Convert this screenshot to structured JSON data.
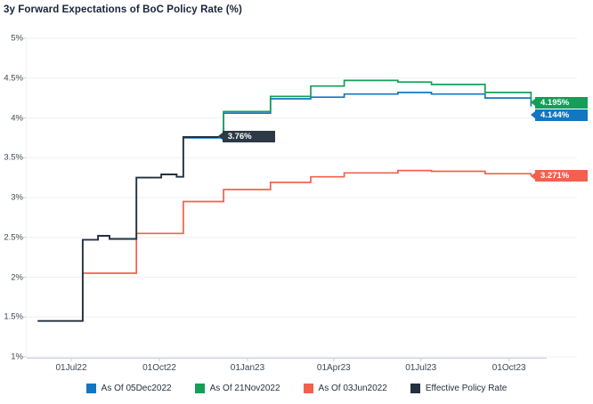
{
  "title": "3y Forward Expectations of BoC Policy Rate (%)",
  "colors": {
    "background": "#ffffff",
    "title_text": "#17243a",
    "tick_text": "#3b4754",
    "gridline": "#f0f0f4",
    "axis_line": "#c9d2de",
    "blue": "#1376c0",
    "green": "#149e58",
    "red": "#f4604e",
    "navy": "#233140",
    "inline_label_bg": "#2c3946"
  },
  "chart_data": {
    "type": "line",
    "subtype": "step-after",
    "title": "3y Forward Expectations of BoC Policy Rate (%)",
    "xlabel": "",
    "ylabel": "",
    "ylim": [
      1,
      5
    ],
    "y_unit": "%",
    "grid": "horizontal",
    "legend_position": "bottom",
    "y_axis": {
      "ticks": [
        {
          "label": "5%",
          "value": 5
        },
        {
          "label": "4.5%",
          "value": 4.5
        },
        {
          "label": "4%",
          "value": 4
        },
        {
          "label": "3.5%",
          "value": 3.5
        },
        {
          "label": "3%",
          "value": 3
        },
        {
          "label": "2.5%",
          "value": 2.5
        },
        {
          "label": "2%",
          "value": 2
        },
        {
          "label": "1.5%",
          "value": 1.5
        },
        {
          "label": "1%",
          "value": 1
        }
      ]
    },
    "x_axis": {
      "type": "date",
      "ticks": [
        {
          "label": "01Jul22",
          "date": "2022-07-01"
        },
        {
          "label": "01Oct22",
          "date": "2022-10-01"
        },
        {
          "label": "01Jan23",
          "date": "2023-01-01"
        },
        {
          "label": "01Apr23",
          "date": "2023-04-01"
        },
        {
          "label": "01Jul23",
          "date": "2023-07-01"
        },
        {
          "label": "01Oct23",
          "date": "2023-10-01"
        }
      ]
    },
    "series": [
      {
        "name": "As Of 05Dec2022",
        "color": "#1376c0",
        "end_label": "4.144%",
        "label_inline": false,
        "points": [
          [
            "2022-10-26",
            3.75
          ],
          [
            "2022-12-07",
            4.06
          ],
          [
            "2023-01-25",
            4.24
          ],
          [
            "2023-03-08",
            4.26
          ],
          [
            "2023-04-12",
            4.3
          ],
          [
            "2023-06-07",
            4.32
          ],
          [
            "2023-07-12",
            4.3
          ],
          [
            "2023-09-06",
            4.25
          ],
          [
            "2023-10-24",
            4.144
          ]
        ]
      },
      {
        "name": "As Of 21Nov2022",
        "color": "#149e58",
        "end_label": "4.195%",
        "label_inline": false,
        "points": [
          [
            "2022-10-26",
            3.76
          ],
          [
            "2022-12-07",
            4.08
          ],
          [
            "2023-01-25",
            4.27
          ],
          [
            "2023-03-08",
            4.4
          ],
          [
            "2023-04-12",
            4.47
          ],
          [
            "2023-06-07",
            4.45
          ],
          [
            "2023-07-12",
            4.42
          ],
          [
            "2023-09-06",
            4.32
          ],
          [
            "2023-10-24",
            4.195
          ]
        ]
      },
      {
        "name": "As Of 03Jun2022",
        "color": "#f4604e",
        "end_label": "3.271%",
        "label_inline": false,
        "points": [
          [
            "2022-05-27",
            1.45
          ],
          [
            "2022-07-13",
            2.05
          ],
          [
            "2022-09-07",
            2.55
          ],
          [
            "2022-10-26",
            2.95
          ],
          [
            "2022-12-07",
            3.1
          ],
          [
            "2023-01-25",
            3.19
          ],
          [
            "2023-03-08",
            3.26
          ],
          [
            "2023-04-12",
            3.31
          ],
          [
            "2023-06-07",
            3.34
          ],
          [
            "2023-07-12",
            3.33
          ],
          [
            "2023-09-06",
            3.3
          ],
          [
            "2023-10-24",
            3.271
          ]
        ]
      },
      {
        "name": "Effective Policy Rate",
        "color": "#233140",
        "end_label": "3.76%",
        "label_inline": true,
        "label_bg": "#2c3946",
        "points": [
          [
            "2022-05-27",
            1.45
          ],
          [
            "2022-07-13",
            2.47
          ],
          [
            "2022-07-29",
            2.52
          ],
          [
            "2022-08-10",
            2.48
          ],
          [
            "2022-09-07",
            3.25
          ],
          [
            "2022-10-03",
            3.29
          ],
          [
            "2022-10-19",
            3.26
          ],
          [
            "2022-10-26",
            3.76
          ],
          [
            "2022-12-02",
            3.76
          ]
        ]
      }
    ]
  },
  "legend": {
    "items": [
      {
        "label": "As Of 05Dec2022",
        "color": "#1376c0"
      },
      {
        "label": "As Of 21Nov2022",
        "color": "#149e58"
      },
      {
        "label": "As Of 03Jun2022",
        "color": "#f4604e"
      },
      {
        "label": "Effective Policy Rate",
        "color": "#233140"
      }
    ]
  }
}
